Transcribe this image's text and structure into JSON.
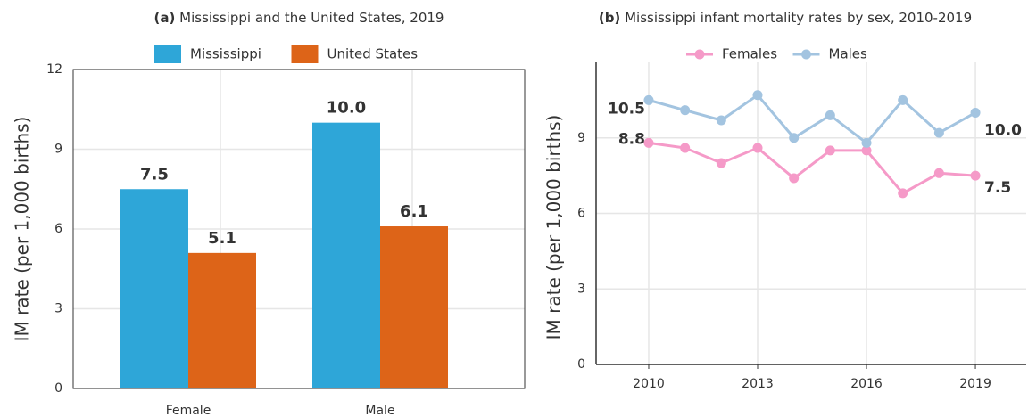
{
  "chart_data": [
    {
      "type": "bar",
      "title_tag": "(a)",
      "title": "Mississippi and the United States, 2019",
      "y_label": "IM rate (per 1,000 births)",
      "categories": [
        "Female",
        "Male"
      ],
      "series": [
        {
          "name": "Mississippi",
          "color": "#2ea6d8",
          "values": [
            7.5,
            10.0
          ],
          "value_labels": [
            "7.5",
            "10.0"
          ]
        },
        {
          "name": "United States",
          "color": "#dd6418",
          "values": [
            5.1,
            6.1
          ],
          "value_labels": [
            "5.1",
            "6.1"
          ]
        }
      ],
      "ylim": [
        0,
        12
      ],
      "yticks": [
        0,
        3,
        6,
        9,
        12
      ],
      "grid": true,
      "legend": "top"
    },
    {
      "type": "line",
      "title_tag": "(b)",
      "title": "Mississippi infant mortality rates by sex, 2010-2019",
      "y_label": "IM rate (per 1,000 births)",
      "x": [
        2010,
        2011,
        2012,
        2013,
        2014,
        2015,
        2016,
        2017,
        2018,
        2019
      ],
      "series": [
        {
          "name": "Females",
          "color": "#f59ac8",
          "values": [
            8.8,
            8.6,
            8.0,
            8.6,
            7.4,
            8.5,
            8.5,
            6.8,
            7.6,
            7.5
          ],
          "value_labels": [
            "8.8",
            null,
            null,
            null,
            null,
            null,
            null,
            null,
            null,
            "7.5"
          ]
        },
        {
          "name": "Males",
          "color": "#a3c4e0",
          "values": [
            10.5,
            10.1,
            9.7,
            10.7,
            9.0,
            9.9,
            8.8,
            10.5,
            9.2,
            10.0
          ],
          "value_labels": [
            "10.5",
            null,
            null,
            null,
            null,
            null,
            null,
            null,
            null,
            "10.0"
          ]
        }
      ],
      "xlim": [
        2008.55,
        2020.4
      ],
      "ylim": [
        0,
        12
      ],
      "xticks": [
        2010,
        2013,
        2016,
        2019
      ],
      "yticks": [
        0,
        3,
        6,
        9
      ],
      "grid": true,
      "legend": "top"
    }
  ]
}
